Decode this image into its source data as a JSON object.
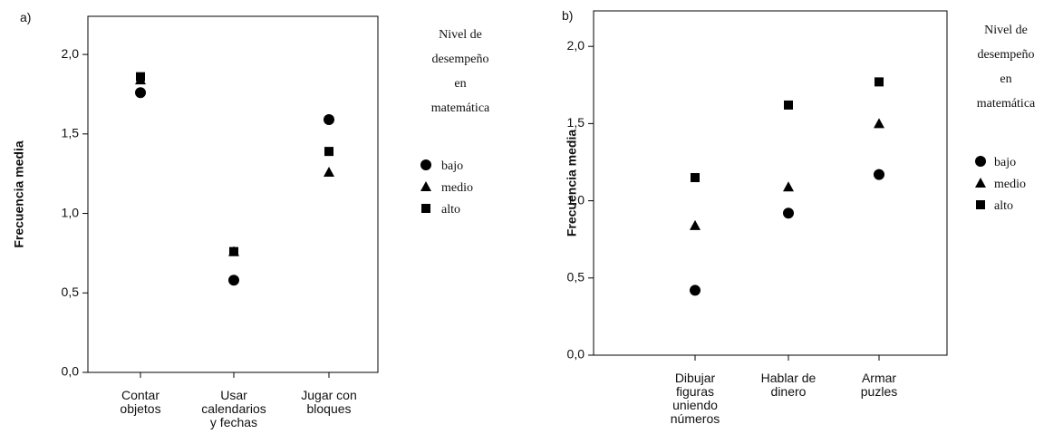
{
  "chart_data": [
    {
      "type": "scatter",
      "panel": "a)",
      "ylabel": "Frecuencia media",
      "categories": [
        "Contar\nobjetos",
        "Usar\ncalendarios\ny fechas",
        "Jugar con\nbloques"
      ],
      "legend_title": "Nivel de\ndesempeño\nen\nmatemática",
      "series": [
        {
          "name": "medio",
          "color": "#000000",
          "marker": "triangle",
          "values": [
            1.84,
            0.76,
            1.26
          ]
        },
        {
          "name": "alto",
          "color": "#000000",
          "marker": "square",
          "values": [
            1.86,
            0.76,
            1.39
          ]
        },
        {
          "name": "bajo",
          "color": "#000000",
          "marker": "circle",
          "values": [
            1.76,
            0.58,
            1.59
          ]
        }
      ],
      "legend_order": [
        "bajo",
        "medio",
        "alto"
      ],
      "ylim": [
        0,
        2.24
      ],
      "yticks": [
        {
          "value": 0,
          "label": "0,0"
        },
        {
          "value": 0.5,
          "label": "0,5"
        },
        {
          "value": 1,
          "label": "1,0"
        },
        {
          "value": 1.5,
          "label": "1,5"
        },
        {
          "value": 2,
          "label": "2,0"
        }
      ]
    },
    {
      "type": "scatter",
      "panel": "b)",
      "ylabel": "Frecuencia media",
      "categories": [
        "Dibujar\nfiguras\nuniendo\nnúmeros",
        "Hablar de\ndinero",
        "Armar\npuzles"
      ],
      "legend_title": "Nivel de\ndesempeño\nen\nmatemática",
      "series": [
        {
          "name": "medio",
          "color": "#000000",
          "marker": "triangle",
          "values": [
            0.84,
            1.09,
            1.5
          ]
        },
        {
          "name": "alto",
          "color": "#000000",
          "marker": "square",
          "values": [
            1.15,
            1.62,
            1.77
          ]
        },
        {
          "name": "bajo",
          "color": "#000000",
          "marker": "circle",
          "values": [
            0.42,
            0.92,
            1.17
          ]
        }
      ],
      "legend_order": [
        "bajo",
        "medio",
        "alto"
      ],
      "ylim": [
        0,
        2.23
      ],
      "yticks": [
        {
          "value": 0,
          "label": "0,0"
        },
        {
          "value": 0.5,
          "label": "0,5"
        },
        {
          "value": 1,
          "label": "1,0"
        },
        {
          "value": 1.5,
          "label": "1,5"
        },
        {
          "value": 2,
          "label": "2,0"
        }
      ]
    }
  ]
}
